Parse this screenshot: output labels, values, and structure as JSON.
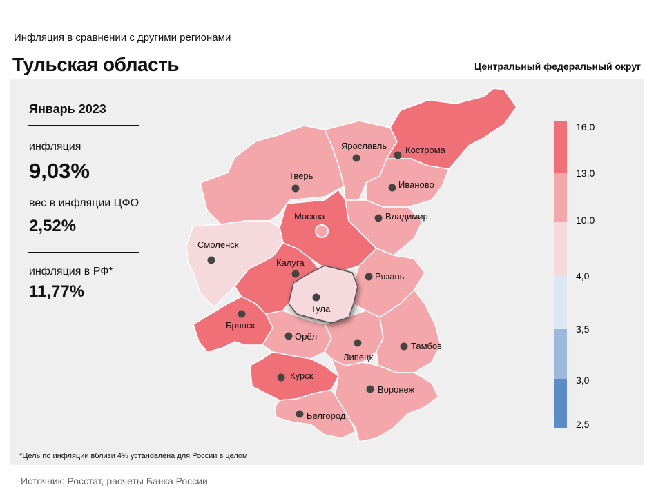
{
  "header": {
    "subtitle": "Инфляция в сравнении с другими регионами",
    "title": "Тульская область",
    "district": "Центральный федеральный округ"
  },
  "stats": {
    "period": "Январь 2023",
    "inflation_label": "инфляция",
    "inflation_value": "9,03%",
    "weight_label": "вес в инфляции ЦФО",
    "weight_value": "2,52%",
    "rf_label": "инфляция в РФ*",
    "rf_value": "11,77%"
  },
  "legend": {
    "labels": [
      "16,0",
      "13,0",
      "10,0",
      "4,0",
      "3,5",
      "3,0",
      "2,5"
    ],
    "bin_colors": [
      "#f07078",
      "#f4a7aa",
      "#f6d9dc",
      "#dde6f3",
      "#9db8dc",
      "#5a8cc7"
    ]
  },
  "map": {
    "highlighted_region": "Тула",
    "cities": [
      {
        "name": "Ярославль",
        "tier": "10-13"
      },
      {
        "name": "Кострома",
        "tier": "13-16"
      },
      {
        "name": "Тверь",
        "tier": "10-13"
      },
      {
        "name": "Иваново",
        "tier": "10-13"
      },
      {
        "name": "Москва",
        "tier": "13-16"
      },
      {
        "name": "Владимир",
        "tier": "10-13"
      },
      {
        "name": "Смоленск",
        "tier": "4-10"
      },
      {
        "name": "Калуга",
        "tier": "13-16"
      },
      {
        "name": "Рязань",
        "tier": "10-13"
      },
      {
        "name": "Тула",
        "tier": "4-10"
      },
      {
        "name": "Брянск",
        "tier": "13-16"
      },
      {
        "name": "Орёл",
        "tier": "10-13"
      },
      {
        "name": "Липецк",
        "tier": "10-13"
      },
      {
        "name": "Тамбов",
        "tier": "10-13"
      },
      {
        "name": "Курск",
        "tier": "13-16"
      },
      {
        "name": "Воронеж",
        "tier": "10-13"
      },
      {
        "name": "Белгород",
        "tier": "10-13"
      }
    ]
  },
  "footnote": "*Цель по инфляции вблизи 4% установлена для России в целом",
  "source": "Источник: Росстат, расчеты Банка России"
}
